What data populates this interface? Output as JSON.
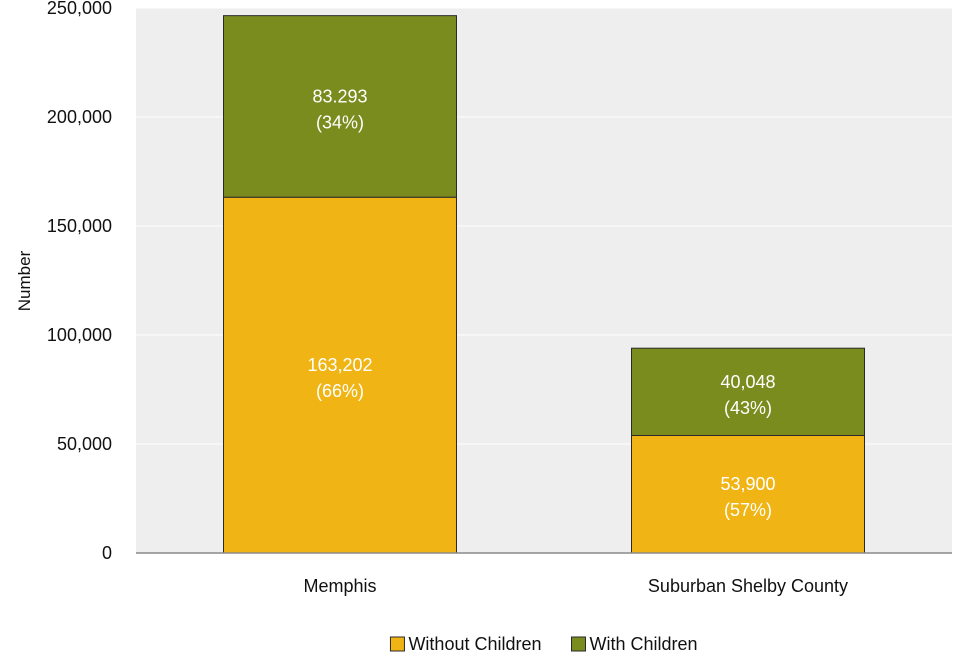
{
  "chart_data": {
    "type": "bar",
    "stacked": true,
    "categories": [
      "Memphis",
      "Suburban Shelby County"
    ],
    "series": [
      {
        "name": "Without Children",
        "values": [
          163202,
          53900
        ],
        "labels": [
          "163,202",
          "53,900"
        ],
        "pct_labels": [
          "(66%)",
          "(57%)"
        ],
        "color": "#f0b514"
      },
      {
        "name": "With Children",
        "values": [
          83293,
          40048
        ],
        "labels": [
          "83.293",
          "40,048"
        ],
        "pct_labels": [
          "(34%)",
          "(43%)"
        ],
        "color": "#7a8c1e"
      }
    ],
    "ylabel": "Number",
    "ylim": [
      0,
      250000
    ],
    "yticks": [
      0,
      50000,
      100000,
      150000,
      200000,
      250000
    ],
    "ytick_labels": [
      "0",
      "50,000",
      "100,000",
      "150,000",
      "200,000",
      "250,000"
    ],
    "grid": true,
    "legend_position": "bottom",
    "plot_background": "#eeeeee"
  }
}
